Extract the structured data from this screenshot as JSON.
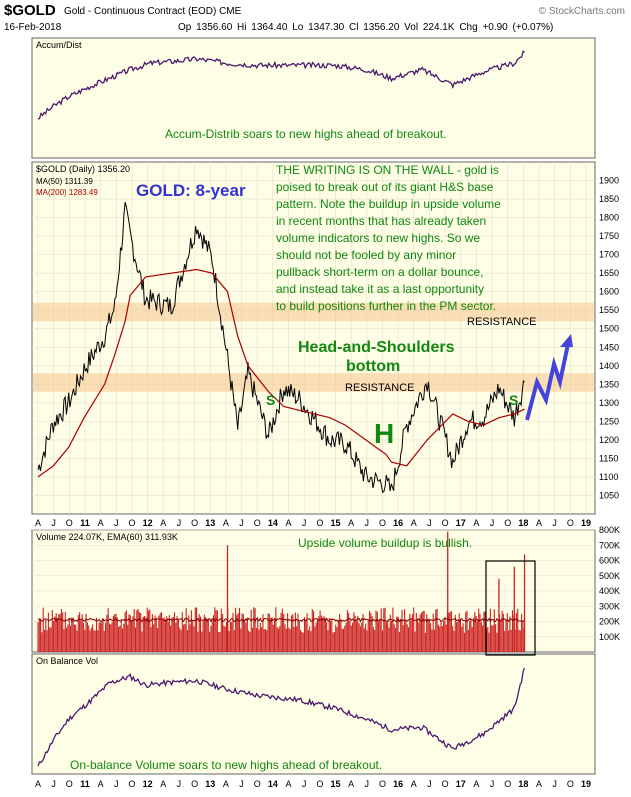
{
  "header": {
    "symbol": "$GOLD",
    "name": "Gold - Continuous Contract (EOD)",
    "exchange": "CME",
    "source": "© StockCharts.com",
    "date": "16-Feb-2018",
    "ohlc": "Op 1356.60  Hi 1364.40  Lo 1347.30  Cl 1356.20  Vol 224.1K  Chg +0.90 (+0.07%)"
  },
  "colors": {
    "bg": "#fefde6",
    "price": "#000000",
    "ma50": "#000000",
    "ma200": "#aa0000",
    "band": "#f6c58c",
    "annotation": "#118811",
    "title_blue": "#3333cc",
    "arrow": "#4444dd",
    "volume": "#cc2222",
    "accum": "#4b1a6e"
  },
  "chart_data": [
    {
      "type": "line",
      "title": "Accum/Dist",
      "annotation": "Accum-Distrib soars to new highs ahead of breakout.",
      "x": [
        "2010-03",
        "2010-06",
        "2010-09",
        "2011-01",
        "2011-05",
        "2011-09",
        "2012-01",
        "2012-06",
        "2012-10",
        "2013-04",
        "2013-10",
        "2014-06",
        "2015-01",
        "2015-07",
        "2015-12",
        "2016-06",
        "2016-12",
        "2017-06",
        "2017-12",
        "2018-02"
      ],
      "values": [
        0.35,
        0.46,
        0.55,
        0.64,
        0.72,
        0.8,
        0.86,
        0.88,
        0.9,
        0.86,
        0.84,
        0.84,
        0.84,
        0.8,
        0.72,
        0.8,
        0.66,
        0.78,
        0.86,
        0.96
      ]
    },
    {
      "type": "line",
      "title": "$GOLD (Daily) 1356.20",
      "legend": [
        "MA(50) 1311.39",
        "MA(200) 1283.49"
      ],
      "big_title": "GOLD: 8-year",
      "commentary": [
        "THE WRITING IS ON THE WALL - gold is",
        "poised to break out of its giant H&S base",
        "pattern. Note the buildup in upside volume",
        "in recent months that has already taken",
        "volume indicators to new highs. So we",
        "should not be fooled by any minor",
        "pullback short-term on a dollar bounce,",
        "and instead take it as a last opportunity",
        "to build positions further in the PM sector."
      ],
      "pattern_label": [
        "Head-and-Shoulders",
        "bottom"
      ],
      "resistance_label": "RESISTANCE",
      "resistance_bands": [
        [
          1520,
          1570
        ],
        [
          1330,
          1380
        ]
      ],
      "shoulder_label": "S",
      "head_label": "H",
      "ylim": [
        1000,
        1950
      ],
      "yticks": [
        1050,
        1100,
        1150,
        1200,
        1250,
        1300,
        1350,
        1400,
        1450,
        1500,
        1550,
        1600,
        1650,
        1700,
        1750,
        1800,
        1850,
        1900
      ],
      "x": [
        "2010-03",
        "2010-06",
        "2010-09",
        "2010-12",
        "2011-04",
        "2011-06",
        "2011-08",
        "2011-09",
        "2011-12",
        "2012-05",
        "2012-10",
        "2013-01",
        "2013-04",
        "2013-06",
        "2013-08",
        "2013-12",
        "2014-03",
        "2014-06",
        "2014-12",
        "2015-03",
        "2015-07",
        "2015-11",
        "2015-12",
        "2016-03",
        "2016-07",
        "2016-12",
        "2017-03",
        "2017-06",
        "2017-09",
        "2017-12",
        "2018-02"
      ],
      "close": [
        1120,
        1245,
        1300,
        1390,
        1480,
        1560,
        1820,
        1750,
        1580,
        1560,
        1780,
        1690,
        1420,
        1230,
        1380,
        1210,
        1340,
        1310,
        1200,
        1190,
        1100,
        1080,
        1060,
        1240,
        1360,
        1140,
        1250,
        1260,
        1340,
        1260,
        1356
      ],
      "ma200": [
        1100,
        1130,
        1180,
        1260,
        1350,
        1430,
        1520,
        1590,
        1640,
        1650,
        1660,
        1650,
        1600,
        1480,
        1400,
        1330,
        1290,
        1280,
        1260,
        1240,
        1200,
        1160,
        1140,
        1130,
        1200,
        1270,
        1250,
        1240,
        1260,
        1270,
        1283
      ],
      "x_ticks": [
        "A",
        "J",
        "O",
        "11",
        "A",
        "J",
        "O",
        "12",
        "A",
        "J",
        "O",
        "13",
        "A",
        "J",
        "O",
        "14",
        "A",
        "J",
        "O",
        "15",
        "A",
        "J",
        "O",
        "16",
        "A",
        "J",
        "O",
        "17",
        "A",
        "J",
        "O",
        "18",
        "A",
        "J",
        "O",
        "19"
      ]
    },
    {
      "type": "bar",
      "title": "Volume 224.07K, EMA(60) 311.93K",
      "annotation": "Upside volume buildup is bullish.",
      "ylim": [
        0,
        800000
      ],
      "yticks": [
        "100K",
        "200K",
        "300K",
        "400K",
        "500K",
        "600K",
        "700K",
        "800K"
      ],
      "avg_volume": 210000,
      "spikes": [
        [
          "2013-04",
          700000
        ],
        [
          "2016-11",
          790000
        ],
        [
          "2017-09",
          480000
        ],
        [
          "2017-12",
          560000
        ],
        [
          "2018-02",
          640000
        ]
      ]
    },
    {
      "type": "line",
      "title": "On Balance Vol",
      "annotation": "On-balance Volume soars to new highs ahead of breakout.",
      "x": [
        "2010-03",
        "2010-06",
        "2010-09",
        "2011-01",
        "2011-05",
        "2011-09",
        "2011-12",
        "2012-06",
        "2012-10",
        "2013-04",
        "2013-10",
        "2014-06",
        "2015-01",
        "2015-07",
        "2015-12",
        "2016-06",
        "2016-12",
        "2017-06",
        "2017-12",
        "2018-02"
      ],
      "values": [
        0.05,
        0.3,
        0.5,
        0.66,
        0.84,
        0.9,
        0.82,
        0.85,
        0.86,
        0.78,
        0.72,
        0.68,
        0.6,
        0.5,
        0.4,
        0.42,
        0.22,
        0.36,
        0.6,
        0.98
      ]
    }
  ]
}
